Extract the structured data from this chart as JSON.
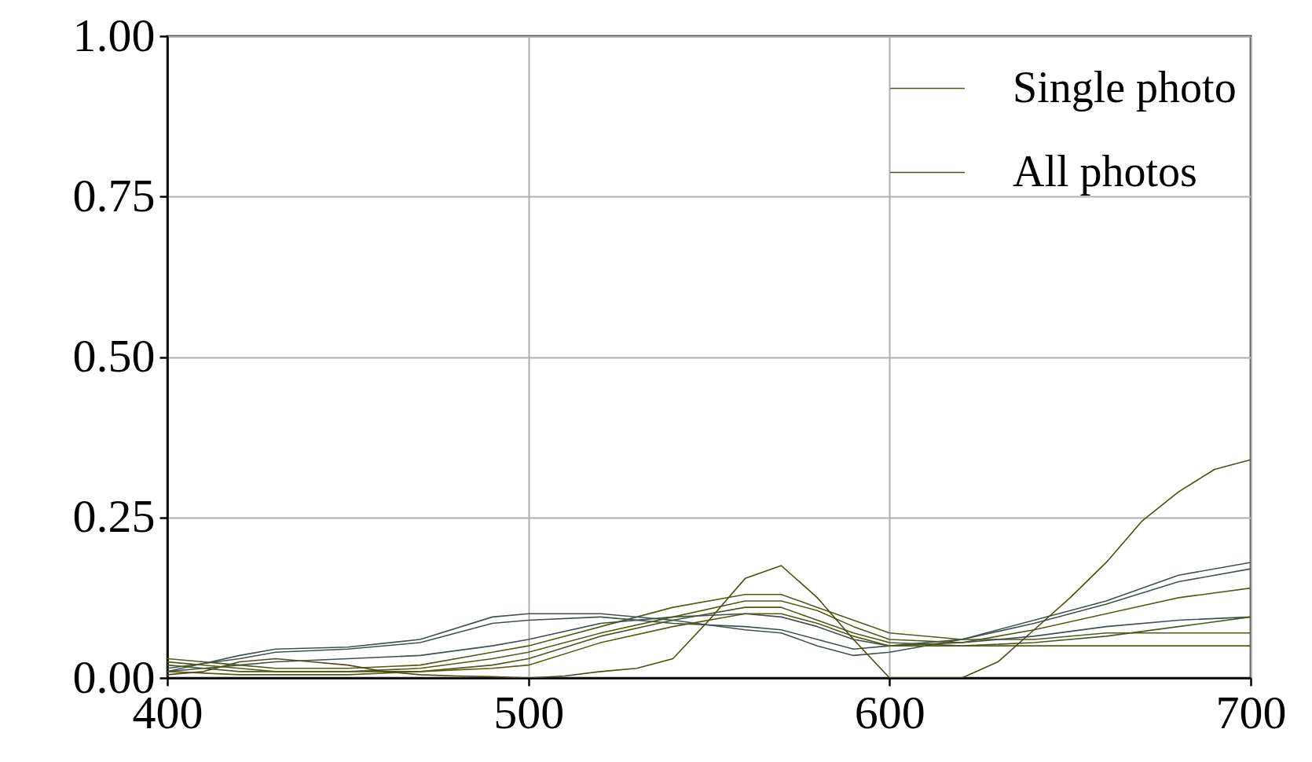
{
  "chart_data": {
    "type": "line",
    "xlim": [
      400,
      700
    ],
    "xticks": [
      400,
      500,
      600,
      700
    ],
    "ylim": [
      0,
      1
    ],
    "yticks": [
      {
        "value": 0,
        "label": "0.00"
      },
      {
        "value": 0.25,
        "label": "0.25"
      },
      {
        "value": 0.5,
        "label": "0.50"
      },
      {
        "value": 0.75,
        "label": "0.75"
      },
      {
        "value": 1,
        "label": "1.00"
      }
    ],
    "grid": true,
    "legend": "top right",
    "series": [
      {
        "name": "Single photo",
        "color": "#525a14",
        "x": [
          400,
          420,
          430,
          450,
          470,
          490,
          500,
          520,
          540,
          560,
          570,
          580,
          590,
          600,
          620,
          640,
          660,
          680,
          700
        ],
        "values": [
          0.03,
          0.02,
          0.015,
          0.015,
          0.02,
          0.04,
          0.05,
          0.08,
          0.11,
          0.13,
          0.13,
          0.11,
          0.09,
          0.07,
          0.06,
          0.06,
          0.07,
          0.07,
          0.07
        ]
      },
      {
        "color": "#3f5150",
        "x": [
          400,
          420,
          430,
          450,
          470,
          490,
          500,
          520,
          540,
          560,
          570,
          580,
          590,
          600,
          620,
          640,
          660,
          680,
          700
        ],
        "values": [
          0.01,
          0.035,
          0.045,
          0.048,
          0.06,
          0.095,
          0.1,
          0.1,
          0.09,
          0.075,
          0.07,
          0.05,
          0.035,
          0.04,
          0.06,
          0.09,
          0.12,
          0.16,
          0.18
        ]
      },
      {
        "color": "#3f5150",
        "x": [
          400,
          420,
          430,
          450,
          470,
          490,
          500,
          520,
          540,
          560,
          570,
          580,
          590,
          600,
          620,
          640,
          660,
          680,
          700
        ],
        "values": [
          0.015,
          0.03,
          0.04,
          0.045,
          0.055,
          0.085,
          0.09,
          0.095,
          0.085,
          0.08,
          0.075,
          0.06,
          0.045,
          0.05,
          0.06,
          0.085,
          0.115,
          0.15,
          0.17
        ]
      },
      {
        "color": "#3f5150",
        "x": [
          400,
          420,
          430,
          450,
          470,
          490,
          500,
          520,
          540,
          560,
          570,
          580,
          590,
          600,
          620,
          640,
          660,
          680,
          700
        ],
        "values": [
          0.01,
          0.02,
          0.025,
          0.03,
          0.035,
          0.05,
          0.06,
          0.085,
          0.095,
          0.1,
          0.095,
          0.08,
          0.06,
          0.05,
          0.055,
          0.065,
          0.08,
          0.09,
          0.095
        ]
      },
      {
        "color": "#525a14",
        "x": [
          400,
          420,
          430,
          450,
          470,
          490,
          500,
          520,
          540,
          560,
          570,
          580,
          590,
          600,
          620,
          640,
          660,
          680,
          700
        ],
        "values": [
          0.025,
          0.015,
          0.01,
          0.01,
          0.015,
          0.03,
          0.04,
          0.07,
          0.095,
          0.12,
          0.12,
          0.105,
          0.08,
          0.06,
          0.055,
          0.075,
          0.1,
          0.125,
          0.14
        ]
      },
      {
        "color": "#4a5a1e",
        "x": [
          400,
          420,
          430,
          450,
          470,
          490,
          500,
          520,
          540,
          560,
          570,
          580,
          590,
          600,
          620,
          640,
          660,
          680,
          700
        ],
        "values": [
          0.02,
          0.01,
          0.01,
          0.01,
          0.01,
          0.02,
          0.03,
          0.065,
          0.09,
          0.11,
          0.11,
          0.09,
          0.07,
          0.055,
          0.05,
          0.055,
          0.065,
          0.08,
          0.095
        ]
      },
      {
        "color": "#5a5a10",
        "x": [
          400,
          420,
          430,
          450,
          470,
          490,
          500,
          520,
          540,
          560,
          570,
          580,
          590,
          600,
          620,
          640,
          660,
          680,
          700
        ],
        "values": [
          0.01,
          0.005,
          0.005,
          0.005,
          0.01,
          0.015,
          0.02,
          0.055,
          0.08,
          0.1,
          0.1,
          0.085,
          0.065,
          0.05,
          0.05,
          0.05,
          0.05,
          0.05,
          0.05
        ]
      },
      {
        "name": "All photos",
        "color": "#4f4a14",
        "x": [
          400,
          410,
          420,
          430,
          440,
          450,
          460,
          470,
          480,
          490,
          500,
          510,
          520,
          530,
          540,
          550,
          560,
          570,
          580,
          590,
          600,
          610,
          620,
          630,
          640,
          650,
          660,
          670,
          680,
          690,
          700
        ],
        "values": [
          0.005,
          0.01,
          0.025,
          0.03,
          0.025,
          0.02,
          0.01,
          0.005,
          0.003,
          0.002,
          0,
          0.003,
          0.01,
          0.015,
          0.03,
          0.09,
          0.155,
          0.175,
          0.125,
          0.06,
          0,
          0,
          0,
          0.025,
          0.075,
          0.125,
          0.18,
          0.245,
          0.29,
          0.325,
          0.34
        ]
      }
    ]
  }
}
